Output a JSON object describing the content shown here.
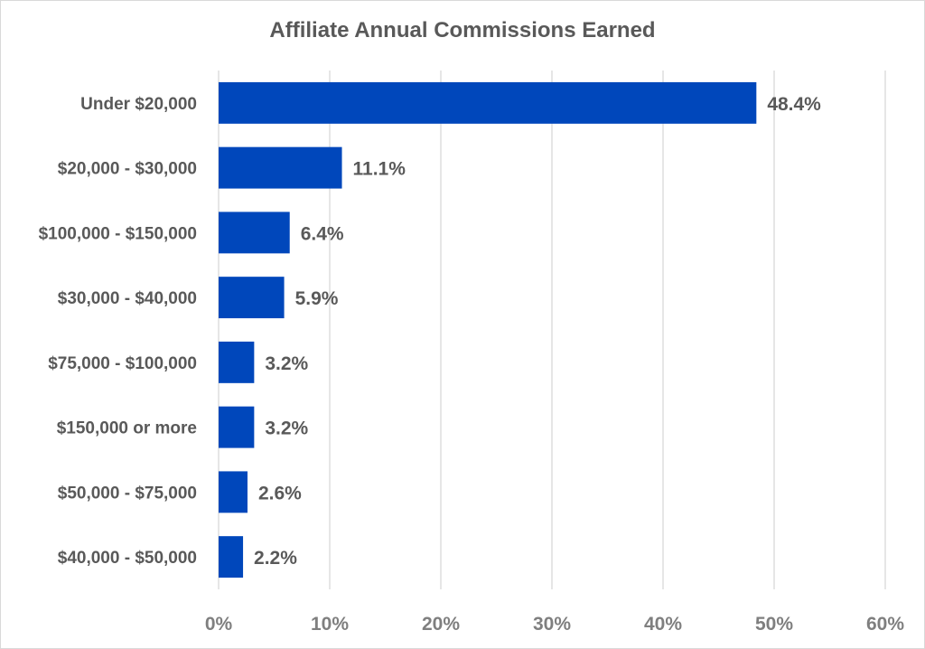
{
  "chart_data": {
    "type": "bar",
    "orientation": "horizontal",
    "title": "Affiliate Annual Commissions Earned",
    "categories": [
      "Under $20,000",
      "$20,000 - $30,000",
      "$100,000 - $150,000",
      "$30,000 - $40,000",
      "$75,000 - $100,000",
      "$150,000 or more",
      "$50,000 - $75,000",
      "$40,000 - $50,000"
    ],
    "values": [
      48.4,
      11.1,
      6.4,
      5.9,
      3.2,
      3.2,
      2.6,
      2.2
    ],
    "data_labels": [
      "48.4%",
      "11.1%",
      "6.4%",
      "5.9%",
      "3.2%",
      "3.2%",
      "2.6%",
      "2.2%"
    ],
    "xlim": [
      0,
      60
    ],
    "x_ticks": [
      0,
      10,
      20,
      30,
      40,
      50,
      60
    ],
    "x_tick_labels": [
      "0%",
      "10%",
      "20%",
      "30%",
      "40%",
      "50%",
      "60%"
    ],
    "xlabel": "",
    "ylabel": "",
    "grid": true,
    "legend": "none",
    "bar_color": "#0047BB"
  }
}
